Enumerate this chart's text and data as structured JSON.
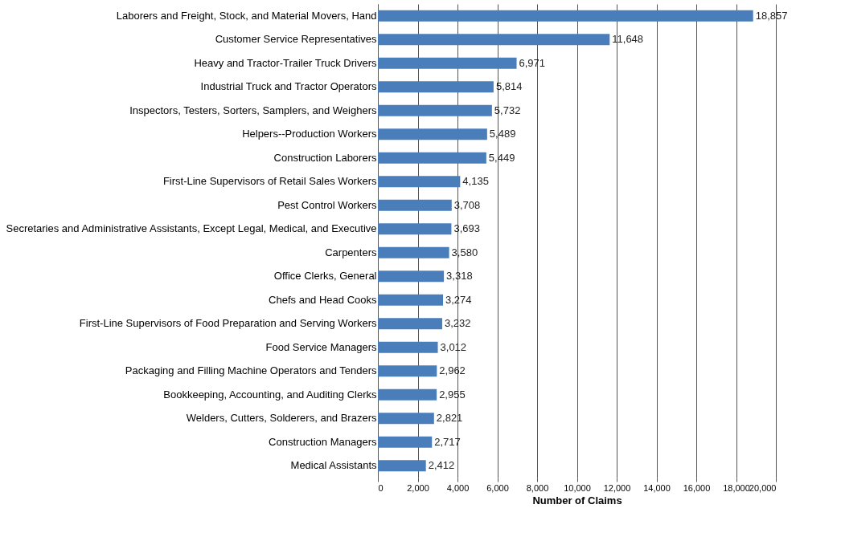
{
  "chart_data": {
    "type": "bar",
    "orientation": "horizontal",
    "xlabel": "Number of Claims",
    "categories": [
      "Laborers and Freight, Stock, and Material Movers, Hand",
      "Customer Service Representatives",
      "Heavy and Tractor-Trailer Truck Drivers",
      "Industrial Truck and Tractor Operators",
      "Inspectors, Testers, Sorters, Samplers, and Weighers",
      "Helpers--Production Workers",
      "Construction Laborers",
      "First-Line Supervisors of Retail Sales Workers",
      "Pest Control Workers",
      "Secretaries and Administrative Assistants, Except Legal, Medical, and Executive",
      "Carpenters",
      "Office Clerks, General",
      "Chefs and Head Cooks",
      "First-Line Supervisors of Food Preparation and Serving Workers",
      "Food Service Managers",
      "Packaging and Filling Machine Operators and Tenders",
      "Bookkeeping, Accounting, and Auditing Clerks",
      "Welders, Cutters, Solderers, and Brazers",
      "Construction Managers",
      "Medical Assistants"
    ],
    "values": [
      18857,
      11648,
      6971,
      5814,
      5732,
      5489,
      5449,
      4135,
      3708,
      3693,
      3580,
      3318,
      3274,
      3232,
      3012,
      2962,
      2955,
      2821,
      2717,
      2412
    ],
    "value_labels": [
      "18,857",
      "11,648",
      "6,971",
      "5,814",
      "5,732",
      "5,489",
      "5,449",
      "4,135",
      "3,708",
      "3,693",
      "3,580",
      "3,318",
      "3,274",
      "3,232",
      "3,012",
      "2,962",
      "2,955",
      "2,821",
      "2,717",
      "2,412"
    ],
    "color": "#4a7ebb",
    "xlim": [
      0,
      20000
    ],
    "xticks": [
      0,
      {
        "value": 2000,
        "label": "2,000"
      },
      {
        "value": 4000,
        "label": "4,000"
      },
      {
        "value": 6000,
        "label": "6,000"
      },
      {
        "value": 8000,
        "label": "8,000"
      },
      {
        "value": 10000,
        "label": "10,000"
      },
      {
        "value": 12000,
        "label": "12,000"
      },
      {
        "value": 14000,
        "label": "14,000"
      },
      {
        "value": 16000,
        "label": "16,000"
      },
      {
        "value": 18000,
        "label": "18,000"
      },
      {
        "value": 20000,
        "label": "20,000"
      }
    ],
    "grid": "x"
  }
}
